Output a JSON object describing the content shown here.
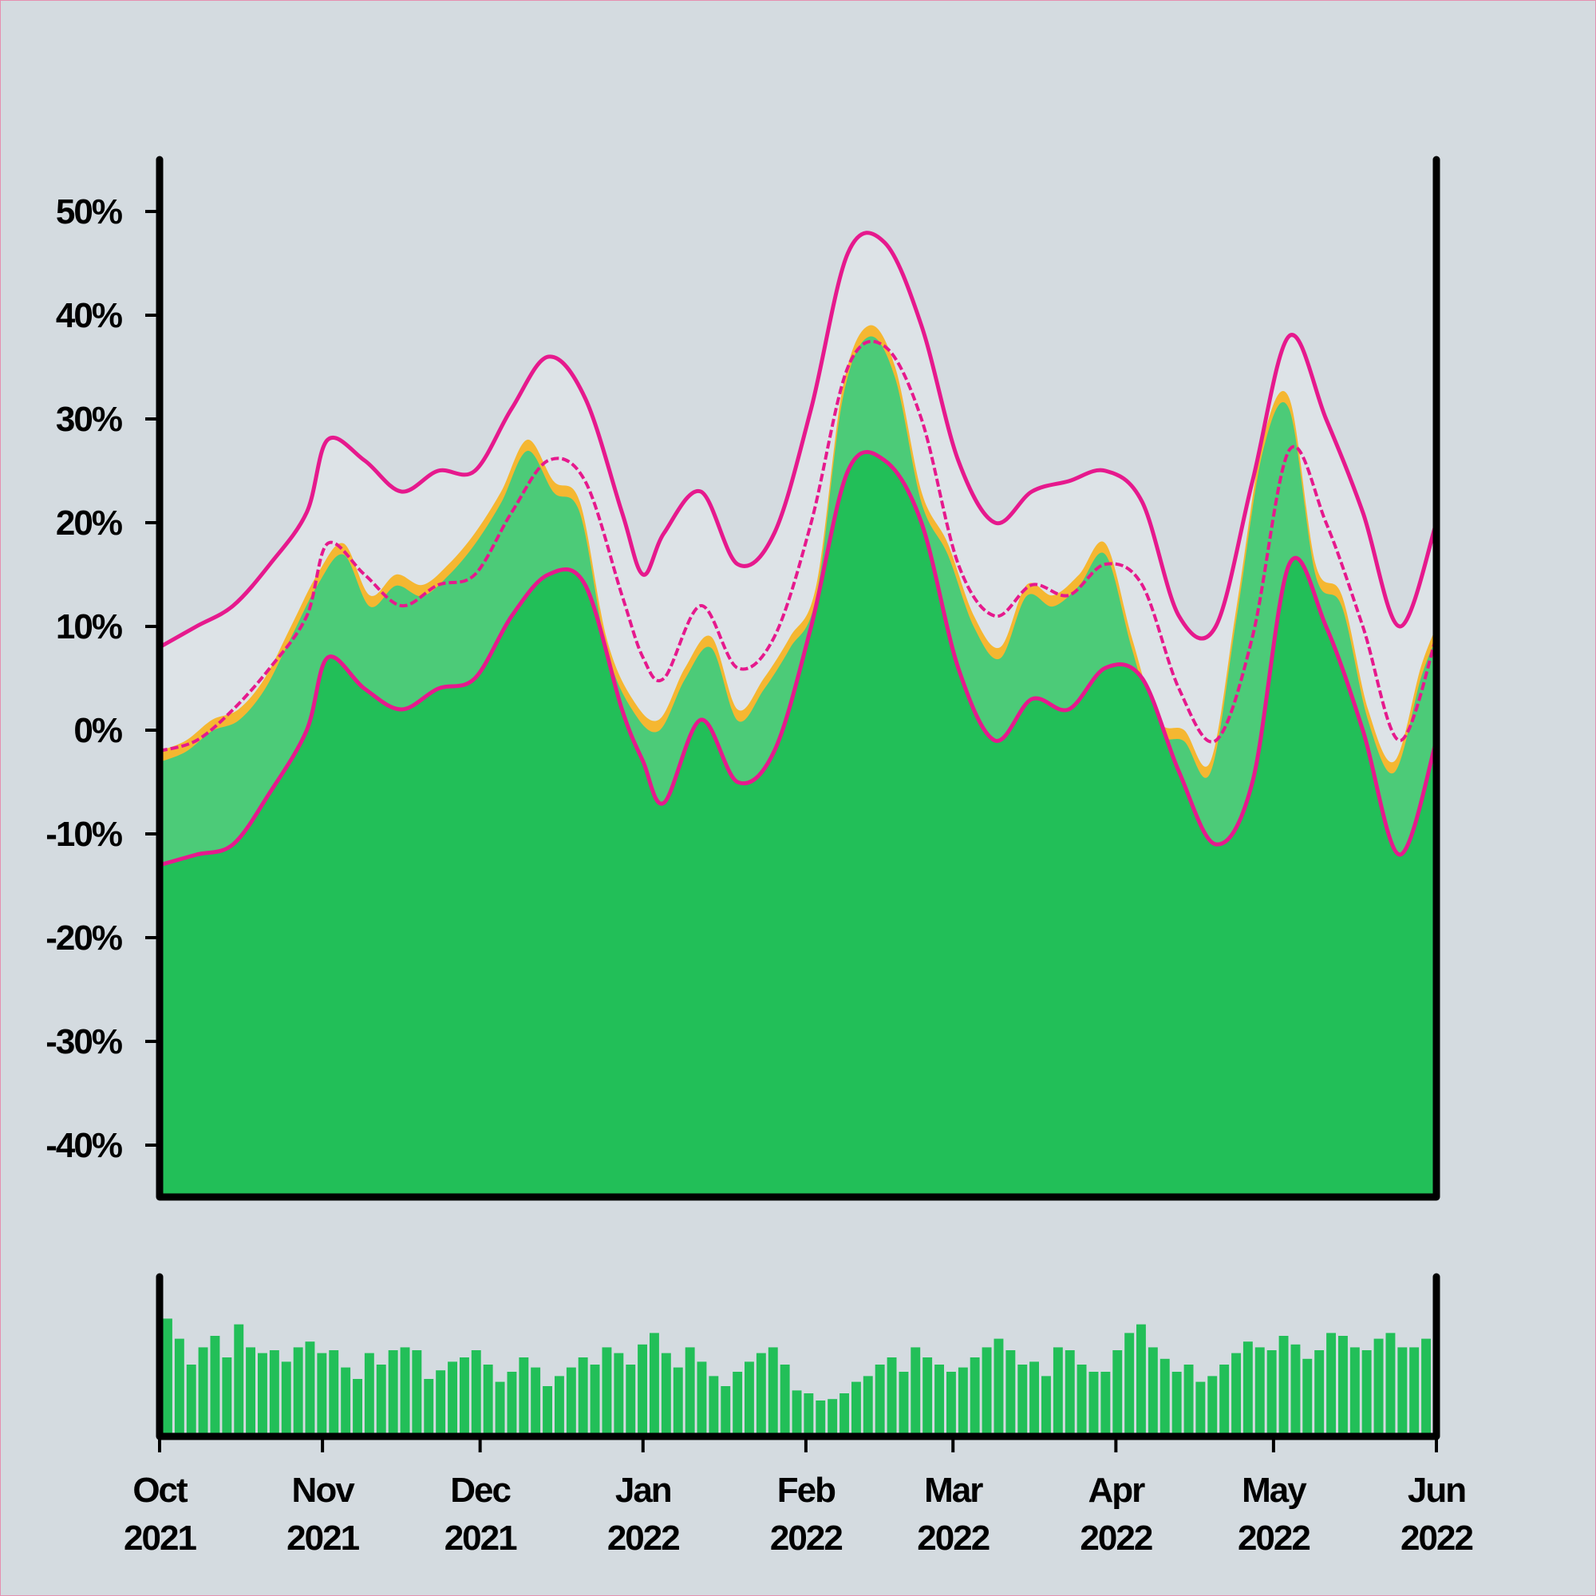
{
  "chart_data": [
    {
      "type": "area",
      "title": "",
      "xlabel": "",
      "ylabel": "",
      "x_range": [
        "2021-10-01",
        "2022-06-01"
      ],
      "ylim": [
        -45,
        55
      ],
      "y_ticks": [
        50,
        40,
        30,
        20,
        10,
        0,
        -10,
        -20,
        -30,
        -40
      ],
      "y_tick_labels": [
        "50%",
        "40%",
        "30%",
        "20%",
        "10%",
        "0%",
        "-10%",
        "-20%",
        "-30%",
        "-40%"
      ],
      "grid": false,
      "x_ticks": [
        {
          "date": "2021-10-01",
          "label": [
            "Oct",
            "2021"
          ]
        },
        {
          "date": "2021-11-01",
          "label": [
            "Nov",
            "2021"
          ]
        },
        {
          "date": "2021-12-01",
          "label": [
            "Dec",
            "2021"
          ]
        },
        {
          "date": "2022-01-01",
          "label": [
            "Jan",
            "2022"
          ]
        },
        {
          "date": "2022-02-01",
          "label": [
            "Feb",
            "2022"
          ]
        },
        {
          "date": "2022-03-01",
          "label": [
            "Mar",
            "2022"
          ]
        },
        {
          "date": "2022-04-01",
          "label": [
            "Apr",
            "2022"
          ]
        },
        {
          "date": "2022-05-01",
          "label": [
            "May",
            "2022"
          ]
        },
        {
          "date": "2022-06-01",
          "label": [
            "Jun",
            "2022"
          ]
        }
      ],
      "series": [
        {
          "role": "price-area",
          "x": [
            "2021-10-01",
            "2021-10-06",
            "2021-10-11",
            "2021-10-16",
            "2021-10-21",
            "2021-10-26",
            "2021-10-31",
            "2021-11-05",
            "2021-11-10",
            "2021-11-15",
            "2021-11-20",
            "2021-11-25",
            "2021-11-30",
            "2021-12-05",
            "2021-12-10",
            "2021-12-15",
            "2021-12-20",
            "2021-12-25",
            "2021-12-30",
            "2022-01-04",
            "2022-01-09",
            "2022-01-14",
            "2022-01-19",
            "2022-01-24",
            "2022-01-29",
            "2022-02-03",
            "2022-02-08",
            "2022-02-13",
            "2022-02-18",
            "2022-02-23",
            "2022-02-28",
            "2022-03-05",
            "2022-03-10",
            "2022-03-15",
            "2022-03-20",
            "2022-03-25",
            "2022-03-30",
            "2022-04-04",
            "2022-04-09",
            "2022-04-14",
            "2022-04-19",
            "2022-04-24",
            "2022-04-29",
            "2022-05-04",
            "2022-05-09",
            "2022-05-14",
            "2022-05-19",
            "2022-05-24",
            "2022-05-29",
            "2022-06-01"
          ],
          "y": [
            -2,
            -1,
            1,
            2,
            5,
            10,
            15,
            18,
            13,
            15,
            14,
            16,
            19,
            23,
            28,
            24,
            22,
            9,
            3,
            1,
            6,
            9,
            2,
            5,
            9,
            14,
            33,
            39,
            35,
            23,
            18,
            11,
            8,
            14,
            13,
            15,
            18,
            9,
            1,
            0,
            -3,
            12,
            28,
            32,
            16,
            13,
            2,
            -3,
            6,
            10
          ]
        },
        {
          "role": "upper-band",
          "x": [
            "2021-10-01",
            "2021-10-08",
            "2021-10-15",
            "2021-10-22",
            "2021-10-29",
            "2021-11-02",
            "2021-11-09",
            "2021-11-16",
            "2021-11-23",
            "2021-11-30",
            "2021-12-07",
            "2021-12-14",
            "2021-12-21",
            "2021-12-28",
            "2022-01-01",
            "2022-01-05",
            "2022-01-12",
            "2022-01-19",
            "2022-01-26",
            "2022-02-02",
            "2022-02-09",
            "2022-02-16",
            "2022-02-23",
            "2022-03-02",
            "2022-03-09",
            "2022-03-16",
            "2022-03-23",
            "2022-03-30",
            "2022-04-06",
            "2022-04-13",
            "2022-04-20",
            "2022-04-27",
            "2022-05-04",
            "2022-05-11",
            "2022-05-18",
            "2022-05-25",
            "2022-06-01"
          ],
          "y": [
            8,
            10,
            12,
            16,
            21,
            28,
            26,
            23,
            25,
            25,
            31,
            36,
            32,
            21,
            15,
            19,
            23,
            16,
            19,
            31,
            46,
            47,
            39,
            26,
            20,
            23,
            24,
            25,
            22,
            11,
            10,
            24,
            38,
            30,
            21,
            10,
            20
          ]
        },
        {
          "role": "middle-band",
          "x": [
            "2021-10-01",
            "2021-10-08",
            "2021-10-15",
            "2021-10-22",
            "2021-10-29",
            "2021-11-02",
            "2021-11-09",
            "2021-11-16",
            "2021-11-23",
            "2021-11-30",
            "2021-12-07",
            "2021-12-14",
            "2021-12-21",
            "2021-12-28",
            "2022-01-01",
            "2022-01-05",
            "2022-01-12",
            "2022-01-19",
            "2022-01-26",
            "2022-02-02",
            "2022-02-09",
            "2022-02-16",
            "2022-02-23",
            "2022-03-02",
            "2022-03-09",
            "2022-03-16",
            "2022-03-23",
            "2022-03-30",
            "2022-04-06",
            "2022-04-13",
            "2022-04-20",
            "2022-04-27",
            "2022-05-04",
            "2022-05-11",
            "2022-05-18",
            "2022-05-25",
            "2022-06-01"
          ],
          "y": [
            -2,
            -1,
            2,
            6,
            11,
            18,
            15,
            12,
            14,
            15,
            21,
            26,
            24,
            13,
            7,
            5,
            12,
            6,
            9,
            20,
            35,
            37,
            30,
            16,
            11,
            14,
            13,
            16,
            14,
            4,
            -1,
            9,
            27,
            20,
            10,
            -1,
            9
          ]
        },
        {
          "role": "lower-band",
          "x": [
            "2021-10-01",
            "2021-10-08",
            "2021-10-15",
            "2021-10-22",
            "2021-10-29",
            "2021-11-02",
            "2021-11-09",
            "2021-11-16",
            "2021-11-23",
            "2021-11-30",
            "2021-12-07",
            "2021-12-14",
            "2021-12-21",
            "2021-12-28",
            "2022-01-01",
            "2022-01-05",
            "2022-01-12",
            "2022-01-19",
            "2022-01-26",
            "2022-02-02",
            "2022-02-09",
            "2022-02-16",
            "2022-02-23",
            "2022-03-02",
            "2022-03-09",
            "2022-03-16",
            "2022-03-23",
            "2022-03-30",
            "2022-04-06",
            "2022-04-13",
            "2022-04-20",
            "2022-04-27",
            "2022-05-04",
            "2022-05-11",
            "2022-05-18",
            "2022-05-25",
            "2022-06-01"
          ],
          "y": [
            -13,
            -12,
            -11,
            -6,
            0,
            7,
            4,
            2,
            4,
            5,
            11,
            15,
            14,
            2,
            -3,
            -7,
            1,
            -5,
            -2,
            10,
            25,
            26,
            20,
            6,
            -1,
            3,
            2,
            6,
            5,
            -4,
            -11,
            -5,
            16,
            10,
            0,
            -12,
            -1
          ]
        }
      ],
      "colors": {
        "price_fill": "#f5b731",
        "band_fill_light": "#dde3e7",
        "band_fill_mid": "#4ccb78",
        "band_fill_dark": "#22bf58",
        "band_line": "#e6198d",
        "axis": "#000000",
        "background": "#d4dbe0"
      }
    },
    {
      "type": "bar",
      "title": "",
      "x_range": [
        "2021-10-01",
        "2022-06-01"
      ],
      "axis_labels": "none",
      "bar_color": "#22bf58",
      "relative_values_0_to_1": [
        0.82,
        0.68,
        0.5,
        0.62,
        0.7,
        0.55,
        0.78,
        0.62,
        0.58,
        0.6,
        0.52,
        0.62,
        0.66,
        0.58,
        0.6,
        0.48,
        0.4,
        0.58,
        0.5,
        0.6,
        0.62,
        0.6,
        0.4,
        0.46,
        0.52,
        0.55,
        0.6,
        0.5,
        0.38,
        0.45,
        0.55,
        0.48,
        0.35,
        0.42,
        0.48,
        0.55,
        0.5,
        0.62,
        0.58,
        0.5,
        0.64,
        0.72,
        0.58,
        0.48,
        0.62,
        0.52,
        0.42,
        0.35,
        0.45,
        0.52,
        0.58,
        0.62,
        0.5,
        0.32,
        0.3,
        0.25,
        0.26,
        0.3,
        0.38,
        0.42,
        0.5,
        0.55,
        0.45,
        0.62,
        0.55,
        0.5,
        0.45,
        0.48,
        0.55,
        0.62,
        0.68,
        0.6,
        0.5,
        0.52,
        0.42,
        0.62,
        0.6,
        0.5,
        0.45,
        0.45,
        0.6,
        0.72,
        0.78,
        0.62,
        0.54,
        0.45,
        0.5,
        0.38,
        0.42,
        0.5,
        0.58,
        0.66,
        0.62,
        0.6,
        0.7,
        0.64,
        0.54,
        0.6,
        0.72,
        0.7,
        0.62,
        0.6,
        0.68,
        0.72,
        0.62,
        0.62,
        0.68
      ]
    }
  ]
}
